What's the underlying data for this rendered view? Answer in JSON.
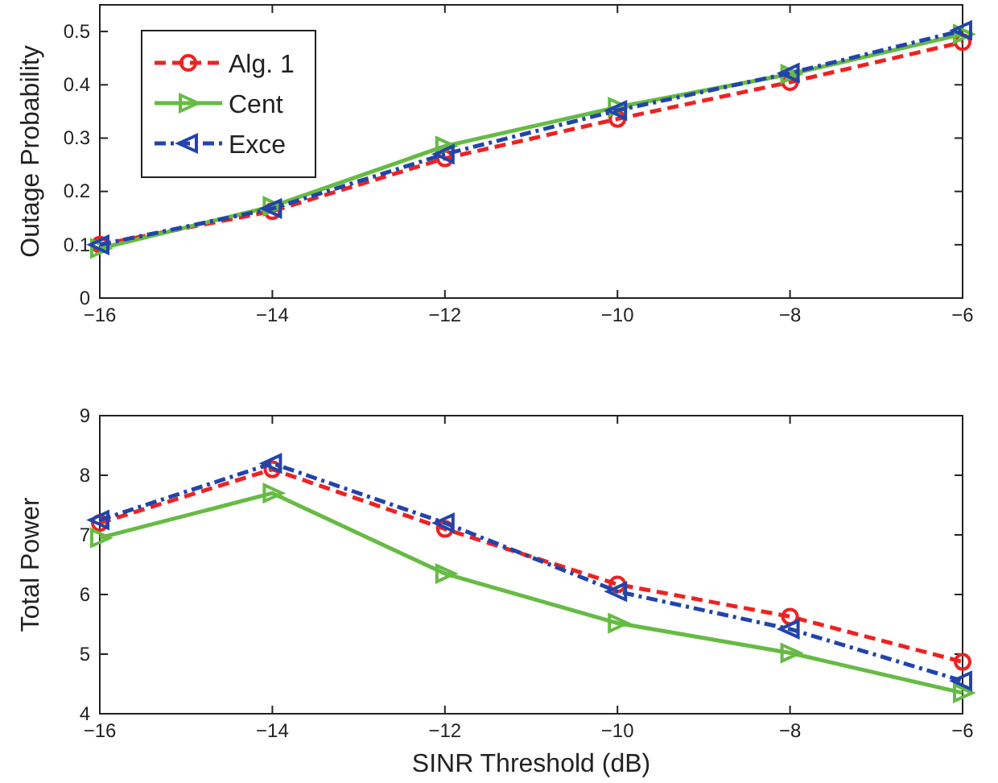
{
  "chart_data": [
    {
      "type": "line",
      "ylabel": "Outage Probability",
      "xlim": [
        -16,
        -6
      ],
      "xticks": [
        -16,
        -14,
        -12,
        -10,
        -8,
        -6
      ],
      "ylim": [
        0,
        0.55
      ],
      "yticks": [
        0,
        0.1,
        0.2,
        0.3,
        0.4,
        0.5
      ],
      "x": [
        -16,
        -14,
        -12,
        -10,
        -8,
        -6
      ],
      "legend": "top left",
      "grid": false,
      "series": [
        {
          "name": "Alg. 1",
          "color": "#ee2222",
          "marker": "circle",
          "line_style": "dashed",
          "values": [
            0.1,
            0.163,
            0.262,
            0.336,
            0.405,
            0.48
          ]
        },
        {
          "name": "Cent",
          "color": "#66bb44",
          "marker": "triangle-right",
          "line_style": "solid",
          "values": [
            0.093,
            0.172,
            0.285,
            0.358,
            0.42,
            0.495
          ]
        },
        {
          "name": "Exce",
          "color": "#2244aa",
          "marker": "triangle-left",
          "line_style": "dashdot",
          "values": [
            0.1,
            0.168,
            0.27,
            0.352,
            0.422,
            0.502
          ]
        }
      ]
    },
    {
      "type": "line",
      "xlabel": "SINR Threshold (dB)",
      "ylabel": "Total Power",
      "xlim": [
        -16,
        -6
      ],
      "xticks": [
        -16,
        -14,
        -12,
        -10,
        -8,
        -6
      ],
      "ylim": [
        4,
        9
      ],
      "yticks": [
        4,
        5,
        6,
        7,
        8,
        9
      ],
      "x": [
        -16,
        -14,
        -12,
        -10,
        -8,
        -6
      ],
      "legend": false,
      "grid": false,
      "series": [
        {
          "color": "#ee2222",
          "marker": "circle",
          "line_style": "dashed",
          "values": [
            7.2,
            8.1,
            7.1,
            6.17,
            5.63,
            4.87
          ]
        },
        {
          "color": "#66bb44",
          "marker": "triangle-right",
          "line_style": "solid",
          "values": [
            6.95,
            7.7,
            6.35,
            5.52,
            5.02,
            4.35
          ]
        },
        {
          "color": "#2244aa",
          "marker": "triangle-left",
          "line_style": "dashdot",
          "values": [
            7.25,
            8.2,
            7.2,
            6.05,
            5.42,
            4.55
          ]
        }
      ]
    }
  ]
}
